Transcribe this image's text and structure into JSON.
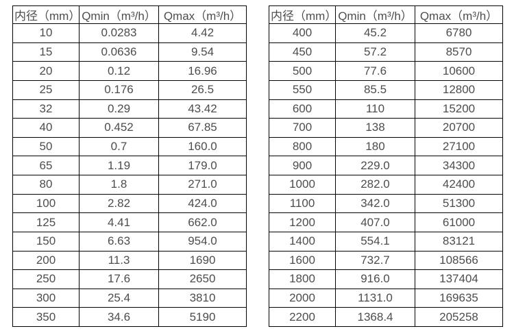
{
  "page": {
    "background_color": "#ffffff",
    "border_color": "#000000",
    "text_color": "#4d4d4d"
  },
  "tables": [
    {
      "name": "flow-rate-table-small-diameters",
      "headers": [
        "内径（mm）",
        "Qmin（m³/h）",
        "Qmax（m³/h）"
      ],
      "rows": [
        [
          "10",
          "0.0283",
          "4.42"
        ],
        [
          "15",
          "0.0636",
          "9.54"
        ],
        [
          "20",
          "0.12",
          "16.96"
        ],
        [
          "25",
          "0.176",
          "26.5"
        ],
        [
          "32",
          "0.29",
          "43.42"
        ],
        [
          "40",
          "0.452",
          "67.85"
        ],
        [
          "50",
          "0.7",
          "160.0"
        ],
        [
          "65",
          "1.19",
          "179.0"
        ],
        [
          "80",
          "1.8",
          "271.0"
        ],
        [
          "100",
          "2.82",
          "424.0"
        ],
        [
          "125",
          "4.41",
          "662.0"
        ],
        [
          "150",
          "6.63",
          "954.0"
        ],
        [
          "200",
          "11.3",
          "1690"
        ],
        [
          "250",
          "17.6",
          "2650"
        ],
        [
          "300",
          "25.4",
          "3810"
        ],
        [
          "350",
          "34.6",
          "5190"
        ]
      ]
    },
    {
      "name": "flow-rate-table-large-diameters",
      "headers": [
        "内径（mm）",
        "Qmin（m³/h）",
        "Qmax（m³/h）"
      ],
      "rows": [
        [
          "400",
          "45.2",
          "6780"
        ],
        [
          "450",
          "57.2",
          "8570"
        ],
        [
          "500",
          "77.6",
          "10600"
        ],
        [
          "550",
          "85.5",
          "12800"
        ],
        [
          "600",
          "110",
          "15200"
        ],
        [
          "700",
          "138",
          "20700"
        ],
        [
          "800",
          "180",
          "27100"
        ],
        [
          "900",
          "229.0",
          "34300"
        ],
        [
          "1000",
          "282.0",
          "42400"
        ],
        [
          "1100",
          "342.0",
          "51300"
        ],
        [
          "1200",
          "407.0",
          "61000"
        ],
        [
          "1400",
          "554.1",
          "83121"
        ],
        [
          "1600",
          "732.7",
          "108566"
        ],
        [
          "1800",
          "916.0",
          "137404"
        ],
        [
          "2000",
          "1131.0",
          "169635"
        ],
        [
          "2200",
          "1368.4",
          "205258"
        ]
      ]
    }
  ]
}
